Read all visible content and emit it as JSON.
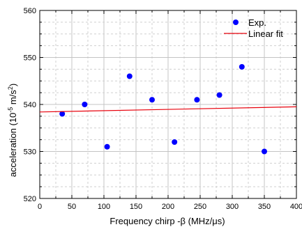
{
  "chart_data": {
    "type": "scatter",
    "xlabel": "Frequency chirp -β (MHz/μs)",
    "ylabel_main": "acceleration (10",
    "ylabel_exp": "-5",
    "ylabel_unit": " m/s",
    "ylabel_unit_exp": "2",
    "ylabel_close": ")",
    "xlim": [
      0,
      400
    ],
    "ylim": [
      520,
      560
    ],
    "x_ticks": [
      0,
      50,
      100,
      150,
      200,
      250,
      300,
      350,
      400
    ],
    "y_ticks": [
      520,
      530,
      540,
      550,
      560
    ],
    "x_minor_step": 25,
    "y_minor_step": 2.5,
    "grid": true,
    "legend_position": "top-right",
    "series": [
      {
        "name": "Exp.",
        "kind": "points",
        "color": "#0000ff",
        "x": [
          35,
          70,
          105,
          140,
          175,
          210,
          245,
          280,
          315,
          350
        ],
        "y": [
          538,
          540,
          531,
          546,
          541,
          532,
          541,
          542,
          548,
          530
        ]
      },
      {
        "name": "Linear fit",
        "kind": "line",
        "color": "#e8000b",
        "x": [
          0,
          400
        ],
        "y": [
          538.4,
          539.5
        ]
      }
    ]
  }
}
